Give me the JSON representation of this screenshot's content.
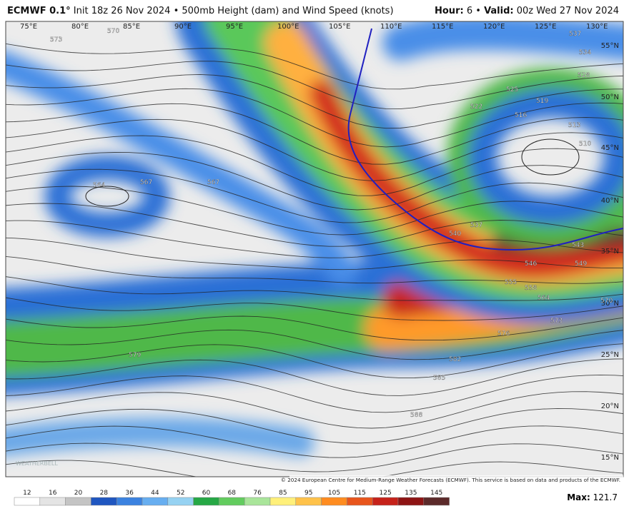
{
  "header": {
    "model": "ECMWF 0.1°",
    "subtitle": "Init 18z 26 Nov 2024 • 500mb Height (dam) and Wind Speed (knots)",
    "hour_label": "Hour:",
    "hour_value": "6",
    "separator": "•",
    "valid_label": "Valid:",
    "valid_value": "00z Wed 27 Nov 2024"
  },
  "map": {
    "longitudes": [
      "75°E",
      "80°E",
      "85°E",
      "90°E",
      "95°E",
      "100°E",
      "105°E",
      "110°E",
      "115°E",
      "120°E",
      "125°E",
      "130°E"
    ],
    "latitudes": [
      "55°N",
      "50°N",
      "45°N",
      "40°N",
      "35°N",
      "30°N",
      "25°N",
      "20°N",
      "15°N"
    ],
    "contour_labels": [
      "573",
      "570",
      "567",
      "564",
      "537",
      "534",
      "528",
      "525",
      "522",
      "519",
      "516",
      "513",
      "510",
      "540",
      "537",
      "543",
      "546",
      "549",
      "555",
      "558",
      "564",
      "570",
      "573",
      "576",
      "579",
      "582",
      "585",
      "588",
      "567"
    ],
    "watermark": "WEATHERBELL",
    "copyright": "© 2024 European Centre for Medium-Range Weather Forecasts (ECMWF). This service is based on data and products of the ECMWF."
  },
  "colorbar": {
    "ticks": [
      12,
      16,
      20,
      28,
      36,
      44,
      52,
      60,
      68,
      76,
      85,
      95,
      105,
      115,
      125,
      135,
      145
    ]
  },
  "max": {
    "label": "Max:",
    "value": 121.7
  }
}
